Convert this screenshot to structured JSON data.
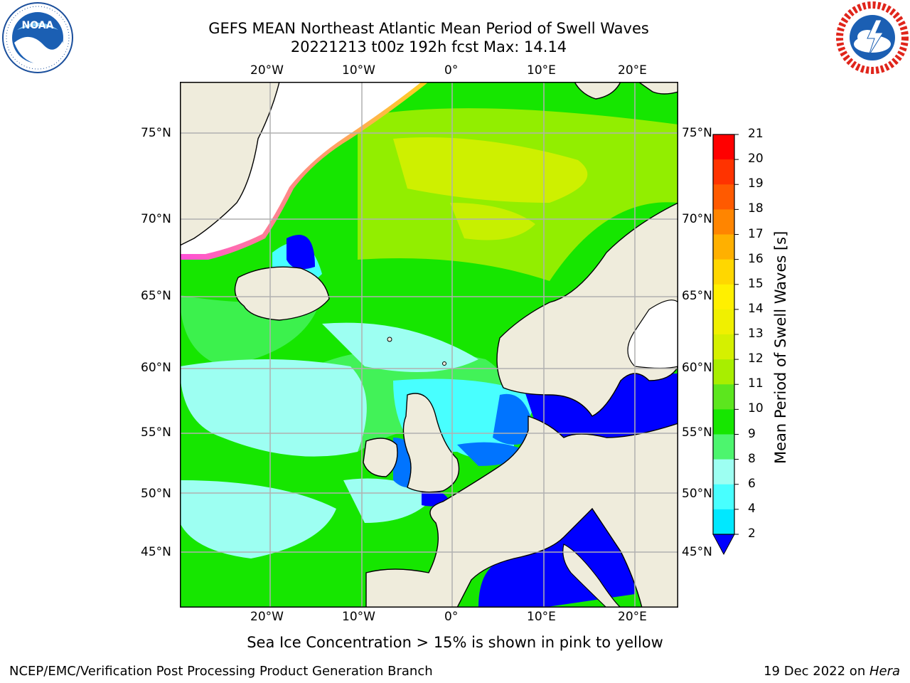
{
  "header": {
    "title_line1": "GEFS MEAN Northeast Atlantic Mean Period of Swell Waves",
    "title_line2": "20221213 t00z 192h fcst   Max: 14.14"
  },
  "logos": {
    "left": {
      "name": "NOAA",
      "ring_text": "NATIONAL OCEANIC AND ATMOSPHERIC ADMINISTRATION · U.S. DEPARTMENT OF COMMERCE"
    },
    "right": {
      "name": "NATIONAL WEATHER SERVICE"
    }
  },
  "map": {
    "lon_ticks_top": [
      "20°W",
      "10°W",
      "0°",
      "10°E",
      "20°E"
    ],
    "lon_ticks_bottom": [
      "20°W",
      "10°W",
      "0°",
      "10°E",
      "20°E"
    ],
    "lat_ticks_left": [
      "75°N",
      "70°N",
      "65°N",
      "60°N",
      "55°N",
      "50°N",
      "45°N"
    ],
    "lat_ticks_right": [
      "75°N",
      "70°N",
      "65°N",
      "60°N",
      "55°N",
      "50°N",
      "45°N"
    ],
    "land_color": "#efecdc",
    "sea_ice_color_low": "#ff4fd8",
    "sea_ice_color_high": "#ffd21f"
  },
  "colorbar": {
    "label": "Mean Period of Swell Waves [s]",
    "ticks": [
      "21",
      "20",
      "19",
      "18",
      "17",
      "16",
      "15",
      "14",
      "13",
      "12",
      "11",
      "10",
      "9",
      "8",
      "6",
      "4",
      "2"
    ],
    "colors": [
      "#ff0000",
      "#ff3300",
      "#ff5a00",
      "#ff8500",
      "#ffb000",
      "#ffd700",
      "#fff000",
      "#f0f000",
      "#d5f000",
      "#a8ee00",
      "#5ce61e",
      "#16e600",
      "#4df56e",
      "#9dfff2",
      "#48ffff",
      "#00e8ff",
      "#0074ff"
    ],
    "under_color": "#0000ff"
  },
  "caption": "Sea Ice Concentration > 15% is shown in pink to yellow",
  "footer": {
    "left": "NCEP/EMC/Verification Post Processing Product Generation Branch",
    "right_date": "19 Dec 2022 on ",
    "right_machine": "Hera"
  }
}
